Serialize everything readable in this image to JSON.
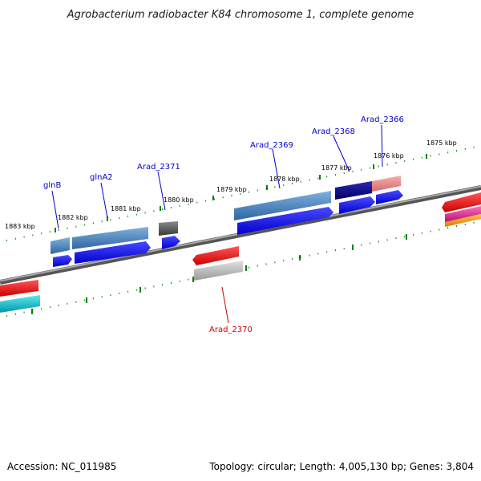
{
  "title": "Agrobacterium radiobacter K84 chromosome 1, complete genome",
  "footer": {
    "accession": "Accession: NC_011985",
    "summary": "Topology: circular; Length: 4,005,130 bp; Genes: 3,804"
  },
  "ticks": [
    "1883 kbp",
    "1882 kbp",
    "1881 kbp",
    "1880 kbp",
    "1879 kbp",
    "1878 kbp",
    "1877 kbp",
    "1876 kbp",
    "1875 kbp"
  ],
  "genes": [
    {
      "label": "glnB",
      "strand": "forward",
      "color": "#0000cc"
    },
    {
      "label": "glnA2",
      "strand": "forward",
      "color": "#0000cc"
    },
    {
      "label": "Arad_2371",
      "strand": "forward",
      "color": "#0000cc"
    },
    {
      "label": "Arad_2369",
      "strand": "forward",
      "color": "#0000cc"
    },
    {
      "label": "Arad_2368",
      "strand": "forward",
      "color": "#0000cc"
    },
    {
      "label": "Arad_2366",
      "strand": "forward",
      "color": "#0000cc"
    },
    {
      "label": "Arad_2370",
      "strand": "reverse",
      "color": "#cc0000"
    }
  ],
  "colors": {
    "backbone": "#808080",
    "tick_marks": "#008000",
    "forward_cds": "#0000ff",
    "reverse_feature": "#ff0000",
    "feature_blue": "#4a7fb5",
    "feature_dark": "#000080",
    "feature_pink": "#f08080",
    "feature_gray": "#666666",
    "feature_light_gray": "#bbbbbb",
    "feature_cyan": "#00c8d0",
    "feature_magenta": "#e0208f",
    "feature_orange": "#f59a00"
  }
}
